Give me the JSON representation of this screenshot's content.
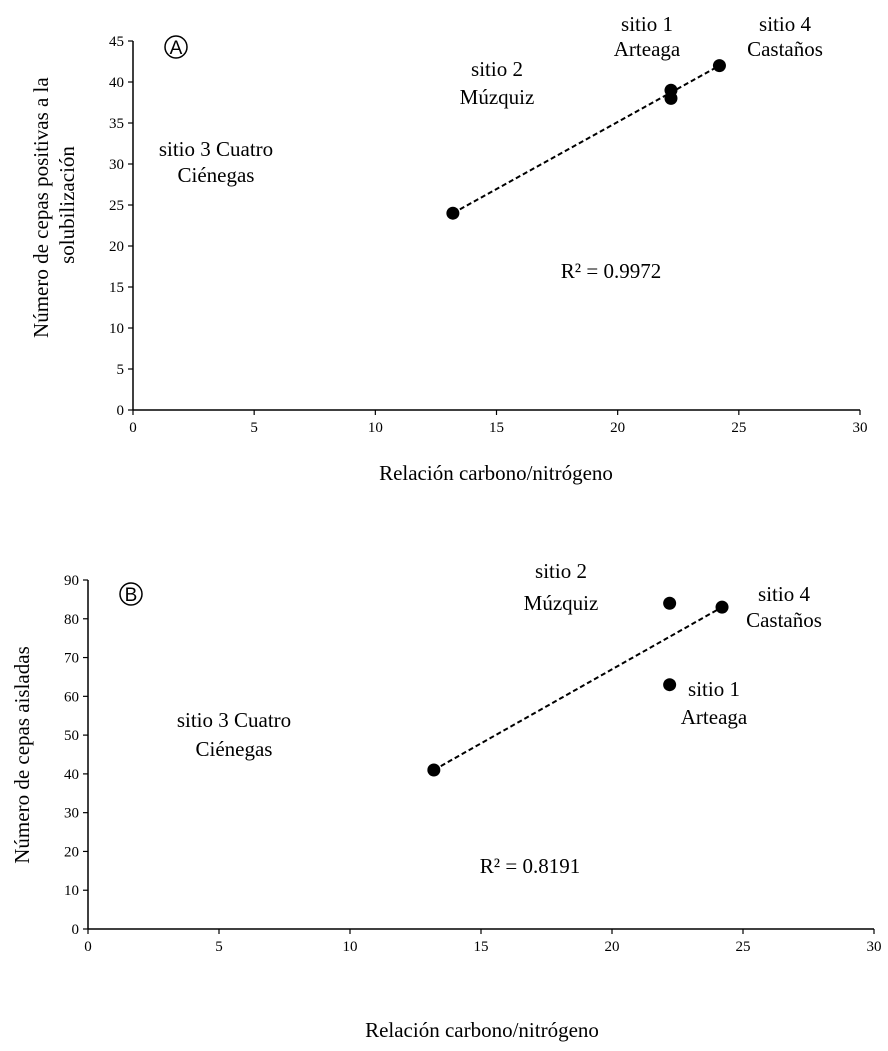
{
  "chart_data": [
    {
      "type": "scatter",
      "panel_label": "A",
      "xlabel": "Relación carbono/nitrógeno",
      "ylabel_lines": [
        "Número de cepas positivas  a la",
        "solubilización"
      ],
      "xlim": [
        0,
        30
      ],
      "ylim": [
        0,
        45
      ],
      "xticks": [
        0,
        5,
        10,
        15,
        20,
        25,
        30
      ],
      "yticks": [
        0,
        5,
        10,
        15,
        20,
        25,
        30,
        35,
        40,
        45
      ],
      "points": [
        {
          "x": 13.2,
          "y": 24
        },
        {
          "x": 22.2,
          "y": 39
        },
        {
          "x": 22.2,
          "y": 38
        },
        {
          "x": 24.2,
          "y": 42
        }
      ],
      "trendline": {
        "style": "dashed",
        "x": [
          13.2,
          24.2
        ],
        "y": [
          24,
          42
        ]
      },
      "r2_text": "R² = 0.9972",
      "annotations": [
        {
          "lines": [
            "sitio 1",
            "Arteaga"
          ]
        },
        {
          "lines": [
            "sitio 4",
            "Castaños"
          ]
        },
        {
          "lines": [
            "sitio 2",
            "Múzquiz"
          ]
        },
        {
          "lines": [
            "sitio 3 Cuatro",
            "Ciénegas"
          ]
        }
      ],
      "grid": false
    },
    {
      "type": "scatter",
      "panel_label": "B",
      "xlabel": "Relación carbono/nitrógeno",
      "ylabel_lines": [
        "Número de cepas aisladas"
      ],
      "xlim": [
        0,
        30
      ],
      "ylim": [
        0,
        90
      ],
      "xticks": [
        0,
        5,
        10,
        15,
        20,
        25,
        30
      ],
      "yticks": [
        0,
        10,
        20,
        30,
        40,
        50,
        60,
        70,
        80,
        90
      ],
      "points": [
        {
          "x": 13.2,
          "y": 41
        },
        {
          "x": 22.2,
          "y": 84
        },
        {
          "x": 22.2,
          "y": 63
        },
        {
          "x": 24.2,
          "y": 83
        }
      ],
      "trendline": {
        "style": "dashed",
        "x": [
          13.2,
          24.2
        ],
        "y": [
          41,
          83
        ]
      },
      "r2_text": "R² = 0.8191",
      "annotations": [
        {
          "lines": [
            "sitio 2",
            "Múzquiz"
          ]
        },
        {
          "lines": [
            "sitio 4",
            "Castaños"
          ]
        },
        {
          "lines": [
            "sitio 1",
            "Arteaga"
          ]
        },
        {
          "lines": [
            "sitio 3 Cuatro",
            "Ciénegas"
          ]
        }
      ],
      "grid": false
    }
  ]
}
